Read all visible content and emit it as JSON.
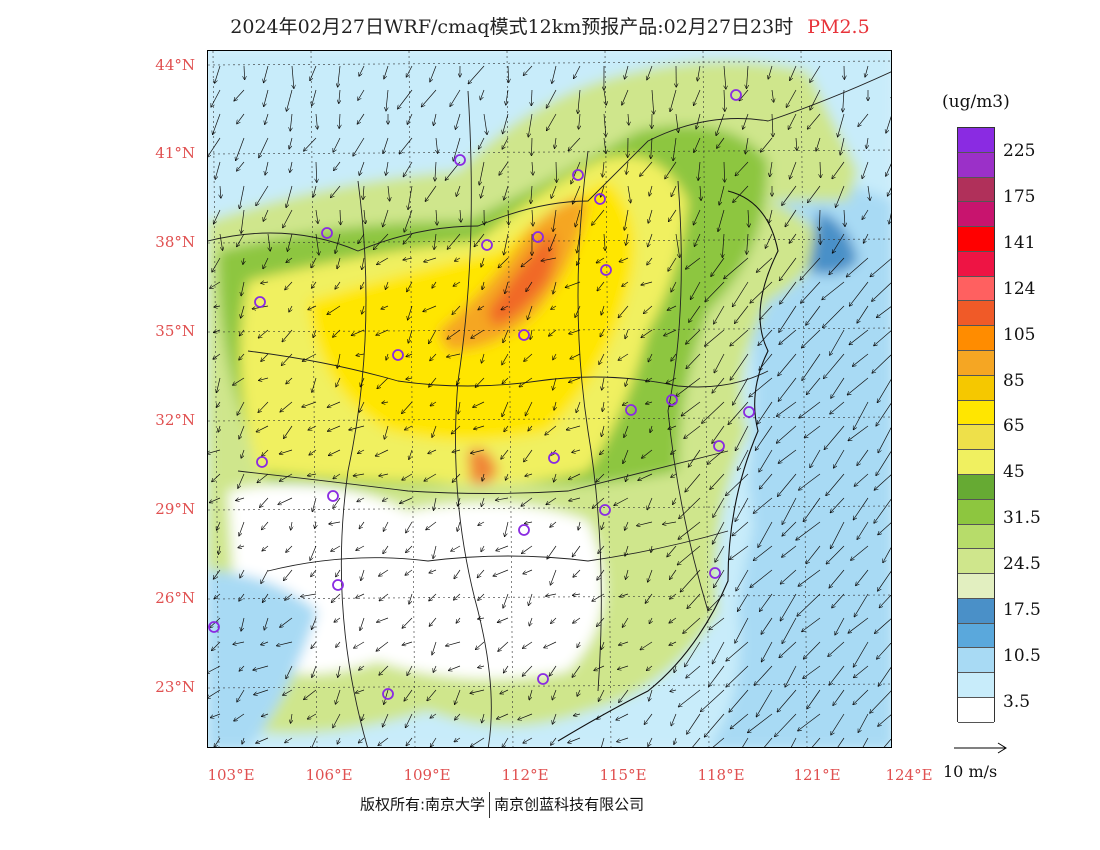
{
  "header": {
    "title": "2024年02月27日WRF/cmaq模式12km预报产品:02月27日23时",
    "pollutant": "PM2.5"
  },
  "map": {
    "lat_labels": [
      "44°N",
      "41°N",
      "38°N",
      "35°N",
      "32°N",
      "29°N",
      "26°N",
      "23°N"
    ],
    "lon_labels": [
      "103°E",
      "106°E",
      "109°E",
      "112°E",
      "115°E",
      "118°E",
      "121°E",
      "124°E"
    ]
  },
  "legend": {
    "unit": "(ug/m3)",
    "labels": [
      "225",
      "175",
      "141",
      "124",
      "105",
      "85",
      "65",
      "45",
      "31.5",
      "24.5",
      "17.5",
      "10.5",
      "3.5"
    ],
    "colors": [
      "#8a2be2",
      "#9b30c8",
      "#b0305a",
      "#c8146e",
      "#ff0000",
      "#ee1444",
      "#ff6060",
      "#f05a28",
      "#ff8c00",
      "#f5a623",
      "#f5c800",
      "#ffe600",
      "#eee04a",
      "#f0f060",
      "#66aa33",
      "#8dc63f",
      "#b7dc6a",
      "#cfe68c",
      "#e2efc0",
      "#4a90c8",
      "#5aa8dc",
      "#a8daf4",
      "#c8ecfa",
      "#ffffff"
    ],
    "wind_scale": "10 m/s"
  },
  "footer": {
    "copyright": "版权所有:南京大学",
    "company": "南京创蓝科技有限公司"
  }
}
